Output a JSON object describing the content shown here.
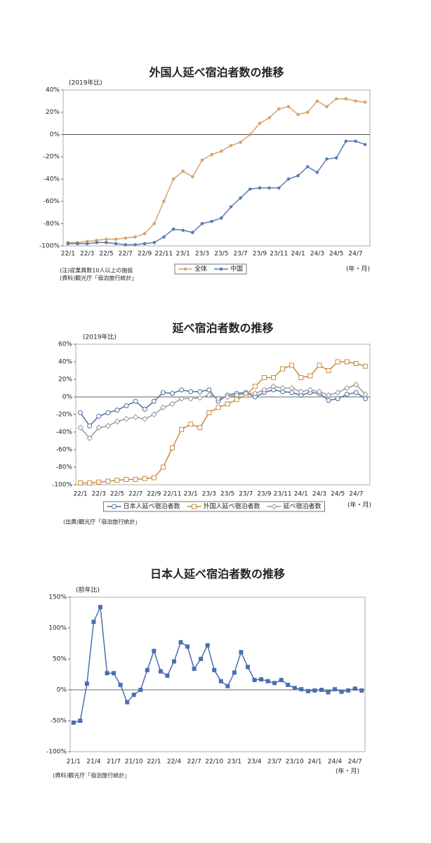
{
  "chart_data": [
    {
      "type": "line",
      "title": "外国人延べ宿泊者数の推移",
      "y_label": "(2019年比)",
      "x_unit": "(年・月)",
      "notes": [
        "(注)従業員数10人以上の施設",
        "(資料)観光庁「宿泊旅行統計」"
      ],
      "categories": [
        "22/1",
        null,
        "22/3",
        null,
        "22/5",
        null,
        "22/7",
        null,
        "22/9",
        null,
        "22/11",
        null,
        "23/1",
        null,
        "23/3",
        null,
        "23/5",
        null,
        "23/7",
        null,
        "23/9",
        null,
        "23/11",
        null,
        "24/1",
        null,
        "24/3",
        null,
        "24/5",
        null,
        "24/7",
        null
      ],
      "ylim": [
        -100,
        40
      ],
      "yticks": [
        {
          "value": -100,
          "label": "-100%"
        },
        {
          "value": -80,
          "label": "-80%"
        },
        {
          "value": -60,
          "label": "-60%"
        },
        {
          "value": -40,
          "label": "-40%"
        },
        {
          "value": -20,
          "label": "-20%"
        },
        {
          "value": 0,
          "label": "0%"
        },
        {
          "value": 20,
          "label": "20%"
        },
        {
          "value": 40,
          "label": "40%"
        }
      ],
      "legend": "bottom",
      "series": [
        {
          "name": "全体",
          "color": "#d9a36a",
          "marker": "dot",
          "values": [
            -97,
            -97,
            -96,
            -95,
            -94,
            -94,
            -93,
            -92,
            -89,
            -80,
            -60,
            -40,
            -33,
            -38,
            -23,
            -18,
            -15,
            -10,
            -7,
            0,
            10,
            15,
            23,
            25,
            18,
            20,
            30,
            25,
            32,
            32,
            30,
            29
          ]
        },
        {
          "name": "中国",
          "color": "#5a7cae",
          "marker": "dot",
          "values": [
            -98,
            -98,
            -98,
            -97,
            -97,
            -98,
            -99,
            -99,
            -98,
            -97,
            -92,
            -85,
            -86,
            -88,
            -80,
            -78,
            -75,
            -65,
            -57,
            -49,
            -48,
            -48,
            -48,
            -40,
            -37,
            -29,
            -34,
            -22,
            -21,
            -6,
            -6,
            -9
          ]
        }
      ]
    },
    {
      "type": "line",
      "title": "延べ宿泊者数の推移",
      "y_label": "(2019年比)",
      "x_unit": "(年・月)",
      "notes": [
        "(出典)観光庁「宿泊旅行統計」"
      ],
      "categories": [
        "22/1",
        null,
        "22/3",
        null,
        "22/5",
        null,
        "22/7",
        null,
        "22/9",
        null,
        "22/11",
        null,
        "23/1",
        null,
        "23/3",
        null,
        "23/5",
        null,
        "23/7",
        null,
        "23/9",
        null,
        "23/11",
        null,
        "24/1",
        null,
        "24/3",
        null,
        "24/5",
        null,
        "24/7",
        null
      ],
      "ylim": [
        -100,
        60
      ],
      "yticks": [
        {
          "value": -100,
          "label": "-100%"
        },
        {
          "value": -80,
          "label": "-80%"
        },
        {
          "value": -60,
          "label": "-60%"
        },
        {
          "value": -40,
          "label": "-40%"
        },
        {
          "value": -20,
          "label": "-20%"
        },
        {
          "value": 0,
          "label": "0%"
        },
        {
          "value": 20,
          "label": "20%"
        },
        {
          "value": 40,
          "label": "40%"
        },
        {
          "value": 60,
          "label": "60%"
        }
      ],
      "legend": "bottom",
      "series": [
        {
          "name": "日本人延べ宿泊者数",
          "color": "#4a6fa0",
          "marker": "circle-open",
          "values": [
            -18,
            -33,
            -22,
            -18,
            -15,
            -10,
            -5,
            -14,
            -5,
            5,
            4,
            8,
            6,
            6,
            8,
            -5,
            2,
            4,
            5,
            0,
            5,
            8,
            6,
            5,
            2,
            5,
            4,
            -4,
            -2,
            3,
            5,
            -2
          ]
        },
        {
          "name": "外国人延べ宿泊者数",
          "color": "#c98a3e",
          "marker": "square-open",
          "values": [
            -98,
            -98,
            -97,
            -96,
            -95,
            -94,
            -94,
            -93,
            -92,
            -80,
            -58,
            -37,
            -31,
            -35,
            -18,
            -12,
            -8,
            -3,
            2,
            12,
            22,
            22,
            32,
            36,
            22,
            24,
            36,
            30,
            40,
            40,
            38,
            35
          ]
        },
        {
          "name": "延べ宿泊者数",
          "color": "#9a9a9a",
          "marker": "diamond-open",
          "values": [
            -35,
            -47,
            -35,
            -33,
            -28,
            -25,
            -23,
            -25,
            -20,
            -12,
            -8,
            -2,
            -2,
            -1,
            2,
            -2,
            0,
            2,
            4,
            4,
            8,
            12,
            10,
            10,
            6,
            8,
            6,
            2,
            5,
            10,
            14,
            3
          ]
        }
      ]
    },
    {
      "type": "line",
      "title": "日本人延べ宿泊者数の推移",
      "y_label": "(前年比)",
      "x_unit": "(年・月)",
      "notes": [
        "(資料)観光庁「宿泊旅行統計」"
      ],
      "categories": [
        "21/1",
        null,
        null,
        "21/4",
        null,
        null,
        "21/7",
        null,
        null,
        "21/10",
        null,
        null,
        "22/1",
        null,
        null,
        "22/4",
        null,
        null,
        "22/7",
        null,
        null,
        "22/10",
        null,
        null,
        "23/1",
        null,
        null,
        "23/4",
        null,
        null,
        "23/7",
        null,
        null,
        "23/10",
        null,
        null,
        "24/1",
        null,
        null,
        "24/4",
        null,
        null,
        "24/7",
        null
      ],
      "ylim": [
        -100,
        150
      ],
      "yticks": [
        {
          "value": -100,
          "label": "-100%"
        },
        {
          "value": -50,
          "label": "-50%"
        },
        {
          "value": 0,
          "label": "0%"
        },
        {
          "value": 50,
          "label": "50%"
        },
        {
          "value": 100,
          "label": "100%"
        },
        {
          "value": 150,
          "label": "150%"
        }
      ],
      "series": [
        {
          "color": "#4a6fb0",
          "marker": "square",
          "values": [
            -53,
            -50,
            10,
            110,
            134,
            27,
            27,
            8,
            -20,
            -8,
            0,
            32,
            63,
            30,
            23,
            46,
            77,
            70,
            34,
            50,
            72,
            32,
            14,
            6,
            28,
            61,
            37,
            16,
            17,
            14,
            11,
            16,
            8,
            3,
            1,
            -2,
            -1,
            0,
            -4,
            1,
            -3,
            -1,
            2,
            -1
          ]
        }
      ]
    }
  ]
}
